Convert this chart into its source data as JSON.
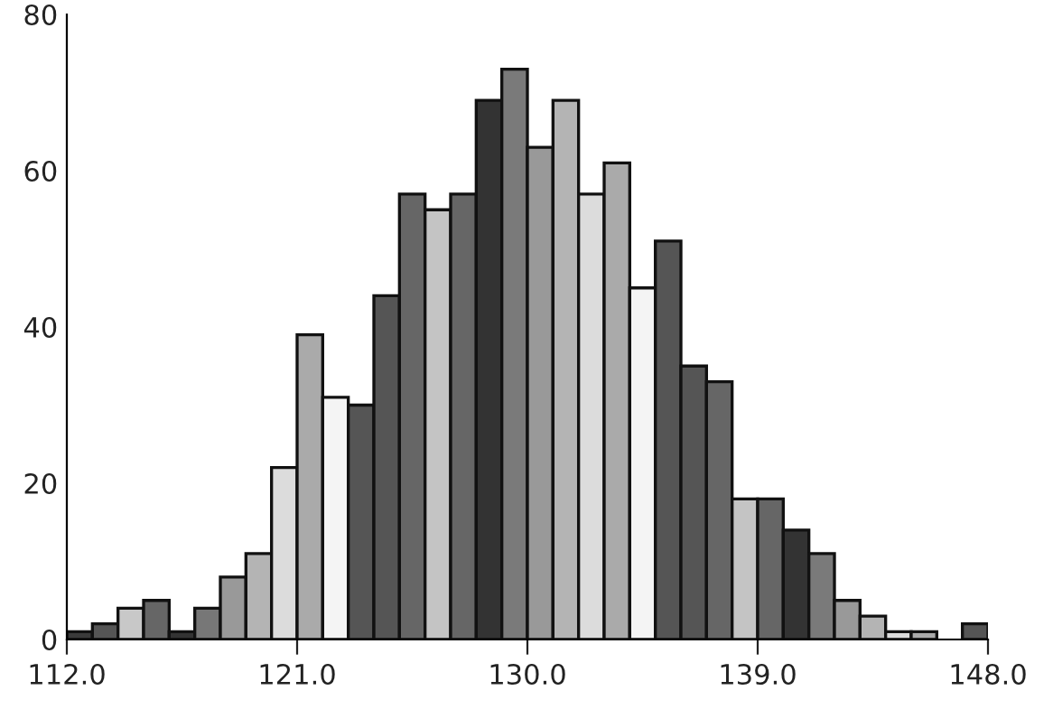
{
  "chart_data": {
    "type": "histogram",
    "bins": [
      112,
      113,
      114,
      115,
      116,
      117,
      118,
      119,
      120,
      121,
      122,
      123,
      124,
      125,
      126,
      127,
      128,
      129,
      130,
      131,
      132,
      133,
      134,
      135,
      136,
      137,
      138,
      139,
      140,
      141,
      142,
      143,
      144,
      145,
      146,
      147,
      148
    ],
    "values": [
      1,
      2,
      4,
      5,
      1,
      4,
      8,
      11,
      22,
      39,
      31,
      30,
      44,
      57,
      55,
      57,
      69,
      73,
      63,
      69,
      57,
      61,
      45,
      51,
      35,
      33,
      18,
      18,
      14,
      11,
      5,
      3,
      1,
      1,
      0,
      2
    ],
    "colors": [
      "#3a3a3a",
      "#555555",
      "#c8c8c8",
      "#666666",
      "#333333",
      "#777777",
      "#999999",
      "#b4b4b4",
      "#dcdcdc",
      "#aaaaaa",
      "#f4f4f4",
      "#555555",
      "#555555",
      "#666666",
      "#c4c4c4",
      "#666666",
      "#333333",
      "#7a7a7a",
      "#999999",
      "#b4b4b4",
      "#dcdcdc",
      "#aaaaaa",
      "#f4f4f4",
      "#555555",
      "#555555",
      "#666666",
      "#c4c4c4",
      "#666666",
      "#333333",
      "#7a7a7a",
      "#999999",
      "#b4b4b4",
      "#dcdcdc",
      "#aaaaaa",
      "#f4f4f4",
      "#555555"
    ],
    "xlim": [
      112,
      148
    ],
    "xticks": [
      {
        "value": 112,
        "label": "112.0"
      },
      {
        "value": 121,
        "label": "121.0"
      },
      {
        "value": 130,
        "label": "130.0"
      },
      {
        "value": 139,
        "label": "139.0"
      },
      {
        "value": 148,
        "label": "148.0"
      }
    ],
    "ylim": [
      0,
      80
    ],
    "yticks": [
      0,
      20,
      40,
      60,
      80
    ],
    "grid": false,
    "legend": false
  }
}
